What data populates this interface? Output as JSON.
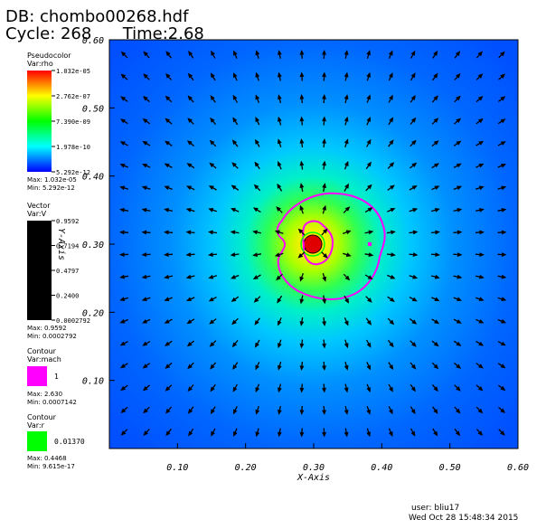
{
  "header": {
    "db": "DB: chombo00268.hdf",
    "cycle": "Cycle: 268",
    "time": "Time:2.68"
  },
  "legends": {
    "pseudocolor": {
      "title": "Pseudocolor",
      "var": "Var:rho",
      "ticks": [
        "1.032e-05",
        "2.762e-07",
        "7.390e-09",
        "1.978e-10",
        "5.292e-12"
      ],
      "max": "Max: 1.032e-05",
      "min": "Min: 5.292e-12",
      "colors": [
        "#ff0000",
        "#ffff00",
        "#00ff00",
        "#00ffff",
        "#0000ff"
      ]
    },
    "vector": {
      "title": "Vector",
      "var": "Var:V",
      "ticks": [
        "0.9592",
        "0.7194",
        "0.4797",
        "0.2400",
        "0.0002792"
      ],
      "max": "Max: 0.9592",
      "min": "Min: 0.0002792",
      "color": "#000000"
    },
    "contour_mach": {
      "title": "Contour",
      "var": "Var:mach",
      "level": "1",
      "max": "Max: 2.630",
      "min": "Min: 0.0007142",
      "color": "#ff00ff"
    },
    "contour_r": {
      "title": "Contour",
      "var": "Var:r",
      "level": "0.01370",
      "max": "Max: 0.4468",
      "min": "Min: 9.615e-17",
      "color": "#00ff00"
    }
  },
  "chart_data": {
    "type": "heatmap",
    "xlabel": "X-Axis",
    "ylabel": "Y-Axis",
    "xlim": [
      0.0,
      0.6
    ],
    "ylim": [
      0.0,
      0.6
    ],
    "xticks": [
      "0.10",
      "0.20",
      "0.30",
      "0.40",
      "0.50",
      "0.60"
    ],
    "yticks": [
      "0.10",
      "0.20",
      "0.30",
      "0.40",
      "0.50",
      "0.60"
    ],
    "center": [
      0.3,
      0.3
    ],
    "vector_field": "radial outflow around the central source",
    "mach_contour_level": 1,
    "r_contour_level": 0.0137
  },
  "footer": {
    "user": "user: bliu17",
    "date": "Wed Oct 28 15:48:34 2015"
  }
}
